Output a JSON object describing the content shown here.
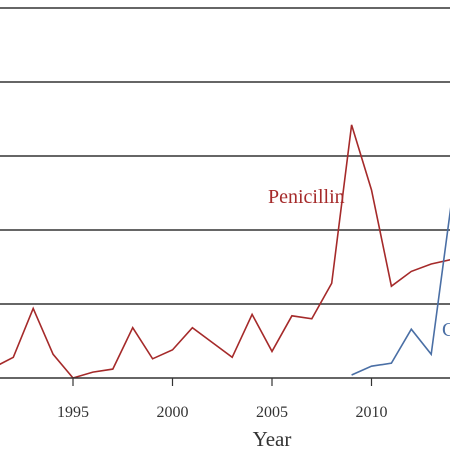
{
  "chart_data": {
    "type": "line",
    "title": "",
    "xlabel": "Year",
    "ylabel": "",
    "xlim": [
      1990,
      2014
    ],
    "ylim": [
      0,
      250
    ],
    "grid": true,
    "grid_values": [
      50,
      100,
      150,
      200,
      250
    ],
    "x_ticks": [
      "1995",
      "2000",
      "2005",
      "2010"
    ],
    "series": [
      {
        "name": "Penicillin",
        "color": "#a52a2a",
        "x": [
          1991,
          1992,
          1993,
          1994,
          1995,
          1996,
          1997,
          1998,
          1999,
          2000,
          2001,
          2002,
          2003,
          2004,
          2005,
          2006,
          2007,
          2008,
          2009,
          2010,
          2011,
          2012,
          2013,
          2014
        ],
        "y": [
          7,
          14,
          47,
          16,
          0,
          4,
          6,
          34,
          13,
          19,
          34,
          24,
          14,
          43,
          18,
          42,
          40,
          64,
          171,
          127,
          62,
          72,
          77,
          80
        ]
      },
      {
        "name": "C",
        "color": "#4a6fa5",
        "x": [
          2009,
          2010,
          2011,
          2012,
          2013,
          2014
        ],
        "y": [
          2,
          8,
          10,
          33,
          16,
          117
        ]
      }
    ]
  }
}
